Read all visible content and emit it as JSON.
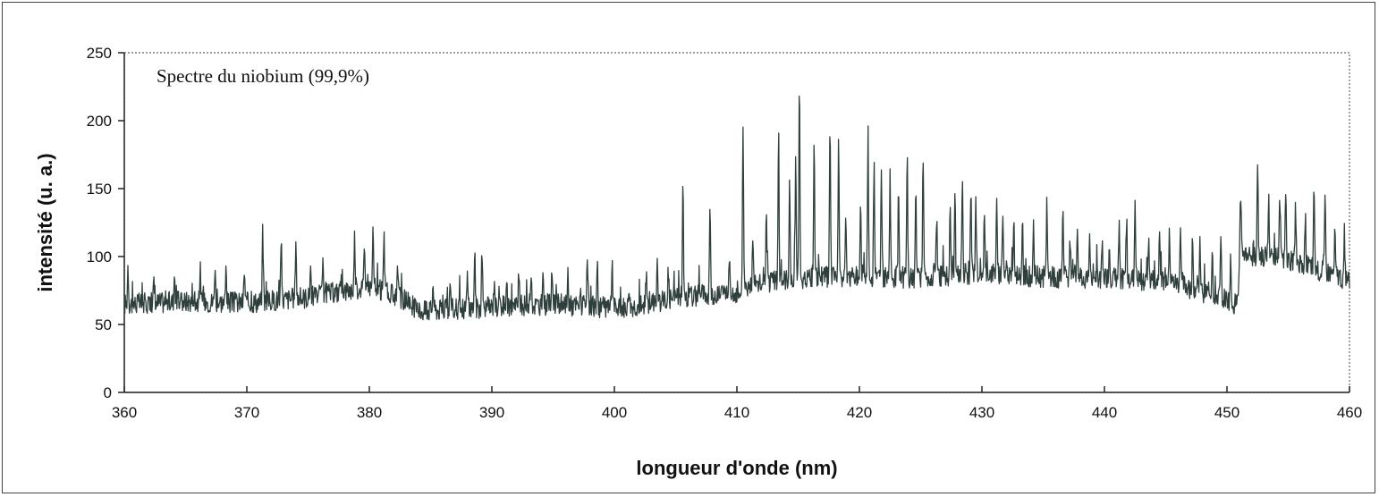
{
  "chart_data": {
    "type": "line",
    "annotation": "Spectre du niobium (99,9%)",
    "xlabel": "longueur d'onde (nm)",
    "ylabel": "intensité (u. a.)",
    "xlim": [
      360,
      460
    ],
    "ylim": [
      0,
      250
    ],
    "x_ticks": [
      360,
      370,
      380,
      390,
      400,
      410,
      420,
      430,
      440,
      450,
      460
    ],
    "y_ticks": [
      0,
      50,
      100,
      150,
      200,
      250
    ],
    "x_tick_labels": [
      "360",
      "370",
      "380",
      "390",
      "400",
      "410",
      "420",
      "430",
      "440",
      "450",
      "460"
    ],
    "y_tick_labels": [
      "0",
      "50",
      "100",
      "150",
      "200",
      "250"
    ],
    "grid": false,
    "line_color": "#2f3f3c",
    "baseline": [
      [
        360,
        65
      ],
      [
        365,
        67
      ],
      [
        370,
        66
      ],
      [
        375,
        70
      ],
      [
        380,
        78
      ],
      [
        383,
        68
      ],
      [
        384,
        60
      ],
      [
        390,
        63
      ],
      [
        395,
        65
      ],
      [
        400,
        62
      ],
      [
        402,
        64
      ],
      [
        405,
        70
      ],
      [
        410,
        74
      ],
      [
        411,
        79
      ],
      [
        415,
        84
      ],
      [
        420,
        86
      ],
      [
        425,
        84
      ],
      [
        430,
        88
      ],
      [
        435,
        85
      ],
      [
        440,
        84
      ],
      [
        445,
        82
      ],
      [
        448,
        74
      ],
      [
        450.8,
        65
      ],
      [
        451.2,
        102
      ],
      [
        455,
        98
      ],
      [
        458,
        88
      ],
      [
        460,
        82
      ]
    ],
    "peaks": [
      [
        360.3,
        94
      ],
      [
        362.4,
        80
      ],
      [
        364.1,
        89
      ],
      [
        366.2,
        90
      ],
      [
        367.4,
        94
      ],
      [
        368.3,
        85
      ],
      [
        369.8,
        90
      ],
      [
        371.3,
        116
      ],
      [
        372.8,
        114
      ],
      [
        374.0,
        115
      ],
      [
        375.2,
        94
      ],
      [
        376.2,
        92
      ],
      [
        377.8,
        84
      ],
      [
        378.8,
        115
      ],
      [
        379.6,
        113
      ],
      [
        380.3,
        116
      ],
      [
        381.2,
        116
      ],
      [
        382.3,
        100
      ],
      [
        385.2,
        81
      ],
      [
        386.6,
        79
      ],
      [
        388.0,
        86
      ],
      [
        388.6,
        106
      ],
      [
        389.2,
        104
      ],
      [
        390.2,
        85
      ],
      [
        391.2,
        84
      ],
      [
        392.2,
        85
      ],
      [
        393.2,
        90
      ],
      [
        394.2,
        88
      ],
      [
        394.9,
        96
      ],
      [
        396.2,
        88
      ],
      [
        397.8,
        100
      ],
      [
        398.6,
        95
      ],
      [
        399.8,
        85
      ],
      [
        401.2,
        80
      ],
      [
        402.6,
        86
      ],
      [
        403.5,
        95
      ],
      [
        404.4,
        90
      ],
      [
        405.6,
        152
      ],
      [
        407.8,
        140
      ],
      [
        409.4,
        100
      ],
      [
        410.5,
        201
      ],
      [
        411.3,
        110
      ],
      [
        412.4,
        130
      ],
      [
        413.4,
        190
      ],
      [
        414.3,
        150
      ],
      [
        414.8,
        174
      ],
      [
        415.1,
        233
      ],
      [
        416.3,
        189
      ],
      [
        417.6,
        194
      ],
      [
        418.3,
        168
      ],
      [
        418.9,
        130
      ],
      [
        420.1,
        140
      ],
      [
        420.7,
        185
      ],
      [
        421.2,
        164
      ],
      [
        421.8,
        160
      ],
      [
        422.5,
        161
      ],
      [
        423.2,
        140
      ],
      [
        423.9,
        173
      ],
      [
        424.6,
        140
      ],
      [
        425.2,
        178
      ],
      [
        426.3,
        130
      ],
      [
        427.4,
        140
      ],
      [
        427.8,
        145
      ],
      [
        428.4,
        160
      ],
      [
        429.1,
        150
      ],
      [
        429.5,
        145
      ],
      [
        430.2,
        130
      ],
      [
        431.2,
        138
      ],
      [
        431.7,
        135
      ],
      [
        432.6,
        132
      ],
      [
        433.3,
        128
      ],
      [
        434.2,
        125
      ],
      [
        435.3,
        143
      ],
      [
        436.6,
        135
      ],
      [
        437.2,
        112
      ],
      [
        437.8,
        115
      ],
      [
        438.8,
        110
      ],
      [
        439.8,
        112
      ],
      [
        440.4,
        108
      ],
      [
        441.2,
        120
      ],
      [
        441.8,
        125
      ],
      [
        442.5,
        143
      ],
      [
        443.6,
        112
      ],
      [
        444.5,
        125
      ],
      [
        445.3,
        123
      ],
      [
        446.2,
        121
      ],
      [
        447.2,
        117
      ],
      [
        447.8,
        113
      ],
      [
        448.8,
        105
      ],
      [
        449.5,
        110
      ],
      [
        450.3,
        95
      ],
      [
        451.1,
        150
      ],
      [
        452.5,
        170
      ],
      [
        453.4,
        140
      ],
      [
        454.3,
        145
      ],
      [
        454.8,
        150
      ],
      [
        455.6,
        138
      ],
      [
        456.4,
        134
      ],
      [
        457.1,
        153
      ],
      [
        458.0,
        153
      ],
      [
        458.8,
        120
      ],
      [
        459.6,
        110
      ]
    ]
  }
}
